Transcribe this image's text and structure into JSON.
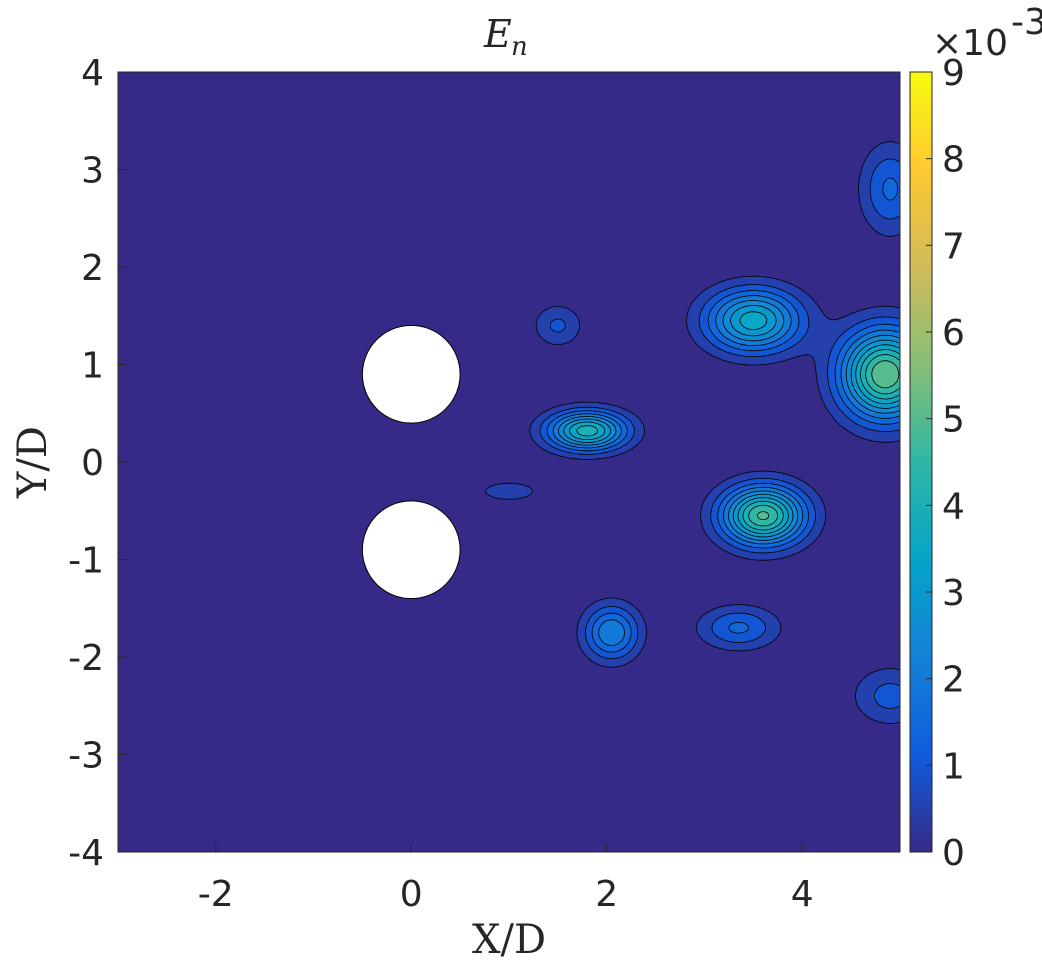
{
  "chart_data": {
    "type": "contour",
    "title": {
      "base": "E",
      "sub": "n"
    },
    "xlabel": "X/D",
    "ylabel": "Y/D",
    "xlim": [
      -3,
      5
    ],
    "ylim": [
      -4,
      4
    ],
    "xticks": [
      "-2",
      "0",
      "2",
      "4"
    ],
    "xtick_values": [
      -2,
      0,
      2,
      4
    ],
    "yticks": [
      "4",
      "3",
      "2",
      "1",
      "0",
      "-1",
      "-2",
      "-3",
      "-4"
    ],
    "ytick_values": [
      4,
      3,
      2,
      1,
      0,
      -1,
      -2,
      -3,
      -4
    ],
    "colorbar": {
      "multiplier": {
        "base": "×10",
        "exp": "-3"
      },
      "ticks": [
        "9",
        "8",
        "7",
        "6",
        "5",
        "4",
        "3",
        "2",
        "1",
        "0"
      ],
      "tick_values": [
        9,
        8,
        7,
        6,
        5,
        4,
        3,
        2,
        1,
        0
      ],
      "range": [
        0,
        0.009
      ],
      "colormap": "parula"
    },
    "cylinders": [
      {
        "x": 0,
        "y": 0.9,
        "diameter": 1
      },
      {
        "x": 0,
        "y": -0.9,
        "diameter": 1
      }
    ],
    "contour_step": 0.0005,
    "peaks": [
      {
        "x": 3.6,
        "y": -0.55,
        "value": 0.0051
      },
      {
        "x": 4.85,
        "y": 0.9,
        "value": 0.0055
      },
      {
        "x": 3.5,
        "y": 1.45,
        "value": 0.0038
      },
      {
        "x": 1.8,
        "y": 0.32,
        "value": 0.0043
      },
      {
        "x": 2.05,
        "y": -1.75,
        "value": 0.0025
      },
      {
        "x": 3.35,
        "y": -1.7,
        "value": 0.0016
      },
      {
        "x": 4.9,
        "y": 2.8,
        "value": 0.0016
      },
      {
        "x": 4.9,
        "y": -2.4,
        "value": 0.0012
      },
      {
        "x": 1.5,
        "y": 1.4,
        "value": 0.0011
      },
      {
        "x": 1.0,
        "y": -0.3,
        "value": 0.0008
      }
    ],
    "background_value": 0.0
  }
}
